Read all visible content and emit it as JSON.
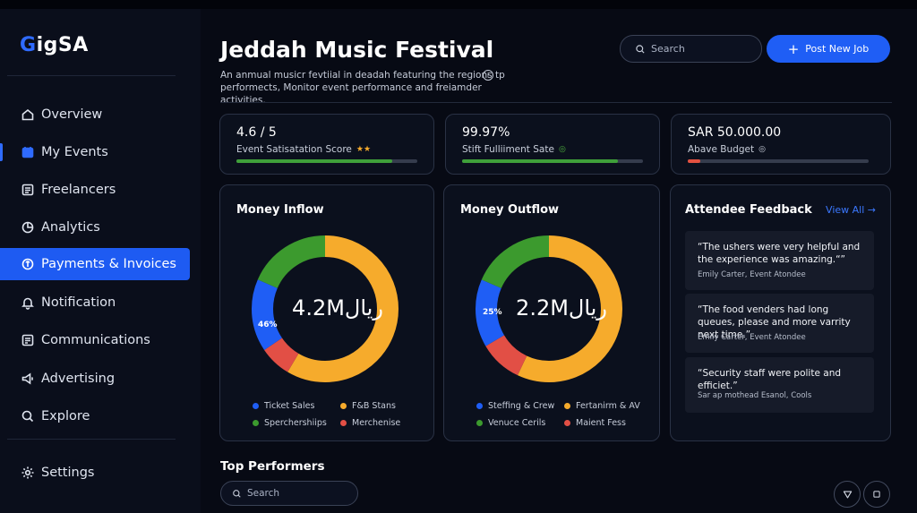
{
  "app": {
    "logo_prefix": "G",
    "logo_rest": "igSA"
  },
  "sidebar": {
    "items": [
      {
        "label": "Overview",
        "icon": "home-icon"
      },
      {
        "label": "My Events",
        "icon": "calendar-icon"
      },
      {
        "label": "Freelancers",
        "icon": "list-icon"
      },
      {
        "label": "Analytics",
        "icon": "analytics-icon"
      },
      {
        "label": "Payments & Invoices",
        "icon": "payment-icon"
      },
      {
        "label": "Notification",
        "icon": "bell-icon"
      },
      {
        "label": "Communications",
        "icon": "message-icon"
      },
      {
        "label": "Advertising",
        "icon": "megaphone-icon"
      },
      {
        "label": "Explore",
        "icon": "search-icon"
      }
    ],
    "active_index": 4,
    "current_index": 1,
    "settings_label": "Settings"
  },
  "header": {
    "title": "Jeddah Music Festival",
    "description": "An anmual musicr fevtiial in deadah featuring the regions tp performects, Monitor event performance and freiamder activities.",
    "search_placeholder": "Search",
    "post_button": "Post New Job"
  },
  "stats": [
    {
      "value": "4.6 / 5",
      "label": "Event Satisatation Score",
      "suffix": "★★",
      "progress": 0.86,
      "color": "#3fa03a"
    },
    {
      "value": "99.97%",
      "label": "Stift Fulliiment Sate",
      "suffix": "◎",
      "progress": 0.86,
      "color": "#3fa03a"
    },
    {
      "value": "SAR 50.000.00",
      "label": "Abave Budget",
      "suffix": "◎",
      "progress": 0.07,
      "color": "#e35140"
    }
  ],
  "colors": {
    "accent": "#1f5ef5",
    "blue": "#1f5ef5",
    "green": "#3c9a2e",
    "yellow": "#f6ab2c",
    "red": "#e24f45"
  },
  "money_inflow": {
    "title": "Money Inflow",
    "center": "4.2Mریال",
    "pct_label": "46%",
    "legend": [
      {
        "label": "Ticket Sales",
        "color": "#1f5ef5"
      },
      {
        "label": "F&B Stans",
        "color": "#f6ab2c"
      },
      {
        "label": "Sperchershiips",
        "color": "#3c9a2e"
      },
      {
        "label": "Merchenise",
        "color": "#e24f45"
      }
    ]
  },
  "money_outflow": {
    "title": "Money Outflow",
    "center": "2.2Mریال",
    "pct_label": "25%",
    "legend": [
      {
        "label": "Steffing & Crew",
        "color": "#1f5ef5"
      },
      {
        "label": "Fertanirm & AV",
        "color": "#f6ab2c"
      },
      {
        "label": "Venuce Cerils",
        "color": "#3c9a2e"
      },
      {
        "label": "Maient Fess",
        "color": "#e24f45"
      }
    ]
  },
  "feedback": {
    "title": "Attendee Feedback",
    "view_all": "View All →",
    "items": [
      {
        "quote": "“The ushers were very helpful and the experience was amazing.“”",
        "author": "Emily Carter, Event Atondee"
      },
      {
        "quote": "“The food venders had long queues, please and more varrity next time.”",
        "author": "Emily Carter, Event Atondee"
      },
      {
        "quote": "“Security staff were polite and efficiet.”",
        "author": "Sar ap mothead Esanol, Cools"
      }
    ]
  },
  "bottom": {
    "section_title": "Top Performers",
    "search_placeholder": "Search"
  }
}
